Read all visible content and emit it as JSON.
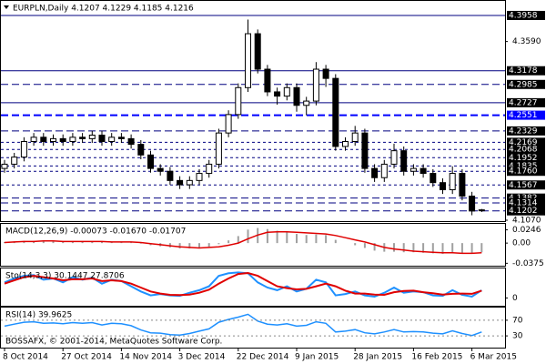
{
  "chart_data": [
    {
      "type": "candlestick",
      "title": "EURPLN,Daily  4.1207 4.1229 4.1185 4.1216",
      "categories": [
        "8 Oct 2014",
        null,
        null,
        null,
        null,
        null,
        "27 Oct 2014",
        null,
        null,
        null,
        null,
        null,
        "14 Nov 2014",
        null,
        null,
        null,
        null,
        null,
        "3 Dec 2014",
        null,
        null,
        null,
        null,
        null,
        "22 Dec 2014",
        null,
        null,
        null,
        null,
        null,
        "9 Jan 2015",
        null,
        null,
        null,
        null,
        null,
        "28 Jan 2015",
        null,
        null,
        null,
        null,
        null,
        "16 Feb 2015",
        null,
        null,
        null,
        null,
        null,
        "6 Mar 2015",
        null
      ],
      "ohlc": [
        [
          4.18,
          4.192,
          4.174,
          4.186
        ],
        [
          4.186,
          4.202,
          4.18,
          4.196
        ],
        [
          4.196,
          4.224,
          4.19,
          4.218
        ],
        [
          4.218,
          4.23,
          4.212,
          4.224
        ],
        [
          4.224,
          4.23,
          4.212,
          4.218
        ],
        [
          4.218,
          4.228,
          4.212,
          4.222
        ],
        [
          4.222,
          4.228,
          4.212,
          4.218
        ],
        [
          4.218,
          4.23,
          4.212,
          4.224
        ],
        [
          4.224,
          4.23,
          4.216,
          4.222
        ],
        [
          4.222,
          4.233,
          4.216,
          4.227
        ],
        [
          4.227,
          4.233,
          4.212,
          4.218
        ],
        [
          4.218,
          4.23,
          4.212,
          4.224
        ],
        [
          4.224,
          4.23,
          4.216,
          4.222
        ],
        [
          4.222,
          4.228,
          4.208,
          4.214
        ],
        [
          4.214,
          4.22,
          4.193,
          4.199
        ],
        [
          4.199,
          4.205,
          4.174,
          4.18
        ],
        [
          4.18,
          4.186,
          4.17,
          4.176
        ],
        [
          4.176,
          4.182,
          4.157,
          4.163
        ],
        [
          4.163,
          4.169,
          4.151,
          4.157
        ],
        [
          4.157,
          4.169,
          4.151,
          4.163
        ],
        [
          4.163,
          4.179,
          4.157,
          4.173
        ],
        [
          4.173,
          4.192,
          4.167,
          4.186
        ],
        [
          4.186,
          4.236,
          4.18,
          4.23
        ],
        [
          4.23,
          4.262,
          4.224,
          4.256
        ],
        [
          4.256,
          4.3,
          4.25,
          4.294
        ],
        [
          4.294,
          4.39,
          4.288,
          4.37
        ],
        [
          4.37,
          4.376,
          4.314,
          4.32
        ],
        [
          4.32,
          4.326,
          4.282,
          4.288
        ],
        [
          4.288,
          4.294,
          4.27,
          4.282
        ],
        [
          4.282,
          4.3,
          4.276,
          4.294
        ],
        [
          4.294,
          4.3,
          4.26,
          4.269
        ],
        [
          4.269,
          4.281,
          4.255,
          4.275
        ],
        [
          4.275,
          4.33,
          4.269,
          4.32
        ],
        [
          4.32,
          4.326,
          4.295,
          4.307
        ],
        [
          4.307,
          4.313,
          4.205,
          4.211
        ],
        [
          4.211,
          4.224,
          4.205,
          4.218
        ],
        [
          4.218,
          4.24,
          4.212,
          4.23
        ],
        [
          4.23,
          4.236,
          4.174,
          4.18
        ],
        [
          4.18,
          4.186,
          4.161,
          4.167
        ],
        [
          4.167,
          4.192,
          4.161,
          4.186
        ],
        [
          4.186,
          4.215,
          4.18,
          4.205
        ],
        [
          4.205,
          4.211,
          4.17,
          4.176
        ],
        [
          4.176,
          4.186,
          4.17,
          4.18
        ],
        [
          4.18,
          4.186,
          4.167,
          4.173
        ],
        [
          4.173,
          4.179,
          4.154,
          4.16
        ],
        [
          4.16,
          4.166,
          4.144,
          4.15
        ],
        [
          4.15,
          4.183,
          4.144,
          4.173
        ],
        [
          4.173,
          4.179,
          4.135,
          4.141
        ],
        [
          4.141,
          4.147,
          4.114,
          4.12
        ],
        [
          4.1207,
          4.1229,
          4.1185,
          4.1216
        ]
      ],
      "ylim": [
        4.1057,
        4.415
      ],
      "yticks": [
        {
          "value": 4.359,
          "label": "4.3590"
        },
        {
          "value": 4.107,
          "label": "4.1070"
        }
      ],
      "levels": [
        {
          "value": 4.3958,
          "style": "solid"
        },
        {
          "value": 4.3178,
          "style": "solid"
        },
        {
          "value": 4.2985,
          "style": "dashed"
        },
        {
          "value": 4.2727,
          "style": "solid"
        },
        {
          "value": 4.2551,
          "style": "double"
        },
        {
          "value": 4.2329,
          "style": "dashed"
        },
        {
          "value": 4.2169,
          "style": "dotted"
        },
        {
          "value": 4.2068,
          "style": "dotted"
        },
        {
          "value": 4.1952,
          "style": "dotted"
        },
        {
          "value": 4.1835,
          "style": "dotted"
        },
        {
          "value": 4.176,
          "label": "4.1760",
          "style": "dotted"
        },
        {
          "value": 4.1567,
          "style": "dotted"
        },
        {
          "value": 4.1382,
          "style": "dashed"
        },
        {
          "value": 4.1314,
          "style": "dashed"
        },
        {
          "value": 4.1202,
          "style": "dashed"
        }
      ],
      "level_color": "#000080",
      "accent_color": "#0000ff"
    },
    {
      "type": "indicator",
      "title": "MACD(12,26,9) -0.00073 -0.01670 -0.01707",
      "ylim": [
        -0.042,
        0.034
      ],
      "yticks": [
        0.0246,
        {
          "value": 0,
          "label": "0.00"
        },
        -0.0375
      ],
      "series": [
        {
          "type": "bar",
          "color": "#a0a0a0",
          "values": [
            0.002,
            0.003,
            0.004,
            0.004,
            0.004,
            0.003,
            0.003,
            0.003,
            0.003,
            0.003,
            0.002,
            0.002,
            0.002,
            0.001,
            -0.001,
            -0.004,
            -0.006,
            -0.008,
            -0.01,
            -0.01,
            -0.009,
            -0.007,
            -0.002,
            0.005,
            0.013,
            0.025,
            0.028,
            0.026,
            0.023,
            0.021,
            0.017,
            0.015,
            0.016,
            0.015,
            0.006,
            0.0,
            -0.004,
            -0.009,
            -0.014,
            -0.016,
            -0.016,
            -0.017,
            -0.017,
            -0.018,
            -0.019,
            -0.02,
            -0.019,
            -0.02,
            -0.02,
            -0.017
          ]
        },
        {
          "type": "line",
          "color": "#e00000",
          "values": [
            0.001,
            0.002,
            0.003,
            0.003,
            0.004,
            0.004,
            0.003,
            0.003,
            0.003,
            0.003,
            0.003,
            0.002,
            0.002,
            0.002,
            0.001,
            -0.001,
            -0.003,
            -0.005,
            -0.007,
            -0.008,
            -0.009,
            -0.008,
            -0.007,
            -0.004,
            0.0,
            0.008,
            0.015,
            0.02,
            0.021,
            0.021,
            0.02,
            0.019,
            0.018,
            0.017,
            0.014,
            0.01,
            0.006,
            0.002,
            -0.003,
            -0.008,
            -0.011,
            -0.013,
            -0.015,
            -0.016,
            -0.017,
            -0.018,
            -0.018,
            -0.019,
            -0.019,
            -0.018
          ]
        }
      ]
    },
    {
      "type": "indicator",
      "title": "Sto(14,3,3) 30.1447 27.8706",
      "ylim": [
        -30,
        110
      ],
      "yticks": [
        0
      ],
      "series": [
        {
          "type": "line",
          "color": "#1e90ff",
          "values": [
            60,
            75,
            85,
            88,
            70,
            75,
            60,
            80,
            70,
            78,
            55,
            70,
            65,
            45,
            25,
            10,
            15,
            10,
            8,
            20,
            30,
            45,
            85,
            95,
            98,
            95,
            60,
            40,
            30,
            45,
            25,
            35,
            70,
            60,
            10,
            15,
            25,
            10,
            5,
            20,
            40,
            20,
            25,
            22,
            10,
            8,
            30,
            12,
            5,
            30
          ]
        },
        {
          "type": "line",
          "color": "#e00000",
          "values": [
            55,
            68,
            80,
            85,
            80,
            75,
            68,
            72,
            72,
            75,
            65,
            68,
            65,
            55,
            40,
            25,
            17,
            12,
            11,
            13,
            20,
            32,
            55,
            75,
            92,
            96,
            85,
            65,
            45,
            38,
            33,
            35,
            45,
            55,
            45,
            28,
            17,
            17,
            13,
            12,
            22,
            27,
            28,
            22,
            18,
            13,
            16,
            17,
            16,
            28
          ]
        }
      ]
    },
    {
      "type": "indicator",
      "title": "RSI(14) 39.9625",
      "annotation": "BOSSAFX, © 2001-2014, MetaQuotes Software Corp.",
      "ylim": [
        0,
        100
      ],
      "yticks": [
        70,
        30
      ],
      "grid": true,
      "series": [
        {
          "type": "line",
          "color": "#1e90ff",
          "values": [
            55,
            60,
            65,
            66,
            62,
            63,
            61,
            64,
            62,
            64,
            58,
            62,
            61,
            56,
            45,
            38,
            37,
            33,
            32,
            36,
            42,
            48,
            65,
            72,
            78,
            85,
            68,
            60,
            58,
            61,
            55,
            57,
            66,
            62,
            40,
            42,
            46,
            38,
            35,
            40,
            46,
            40,
            41,
            40,
            37,
            35,
            43,
            36,
            31,
            40
          ]
        }
      ]
    }
  ]
}
